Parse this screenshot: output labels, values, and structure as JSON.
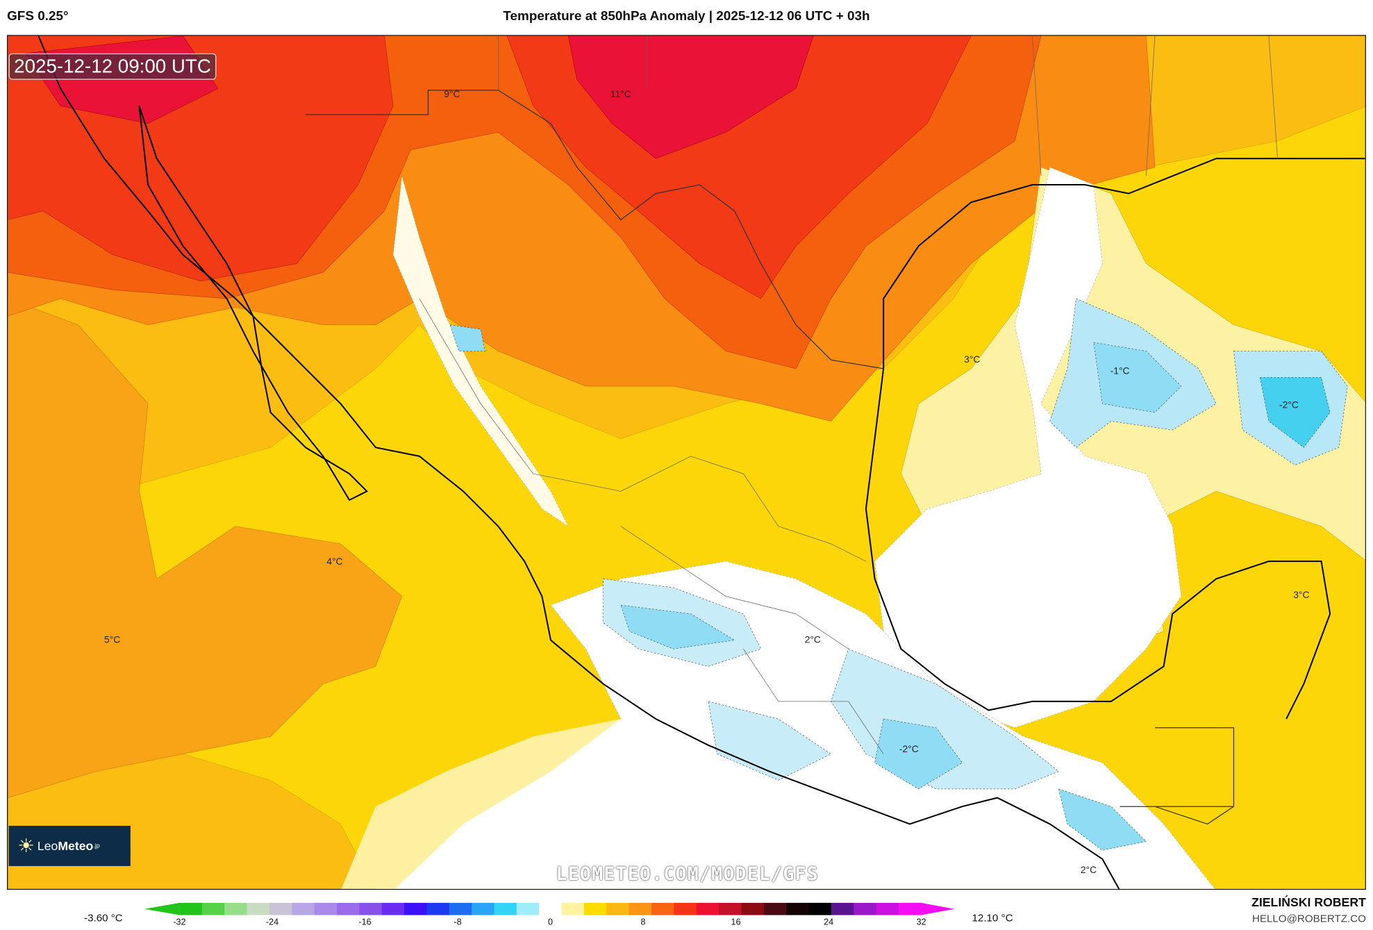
{
  "header": {
    "model": "GFS 0.25°",
    "title": "Temperature at 850hPa Anomaly | 2025-12-12 06 UTC + 03h"
  },
  "map": {
    "valid_time": "2025-12-12 09:00 UTC",
    "watermark": "LEOMETEO.COM/MODEL/GFS",
    "logo": {
      "prefix": "Leo",
      "bold": "Meteo",
      "suffix": ".jp"
    },
    "contour_labels": [
      "9°C",
      "11°C",
      "3°C",
      "-1°C",
      "-2°C",
      "4°C",
      "5°C",
      "2°C",
      "-2°C",
      "3°C",
      "2°C"
    ]
  },
  "colorbar": {
    "min_label": "-3.60 °C",
    "max_label": "12.10 °C",
    "ticks": [
      "-32",
      "-24",
      "-16",
      "-8",
      "0",
      "8",
      "16",
      "24",
      "32"
    ],
    "colors": [
      "#22c41c",
      "#55d24a",
      "#96de8a",
      "#c8dcc4",
      "#c9c3d8",
      "#b9a6e6",
      "#a98aea",
      "#9a6cec",
      "#8a50ec",
      "#6a2cf0",
      "#3c12f4",
      "#1e3af0",
      "#1e6cf2",
      "#2aa4f4",
      "#30d4f6",
      "#a0ecfa",
      "#ffffff",
      "#fff2a0",
      "#ffdc00",
      "#fcb812",
      "#fa9414",
      "#f86414",
      "#f43414",
      "#ec1232",
      "#c4102a",
      "#8c0a14",
      "#4a0a14",
      "#140406",
      "#000000",
      "#5a1490",
      "#9a18c8",
      "#cc10e4",
      "#f40cf4"
    ],
    "arrow_left": "#22c41c",
    "arrow_right": "#f40cf4"
  },
  "credit": {
    "author": "ZIELIŃSKI ROBERT",
    "email": "HELLO@ROBERTZ.CO"
  }
}
